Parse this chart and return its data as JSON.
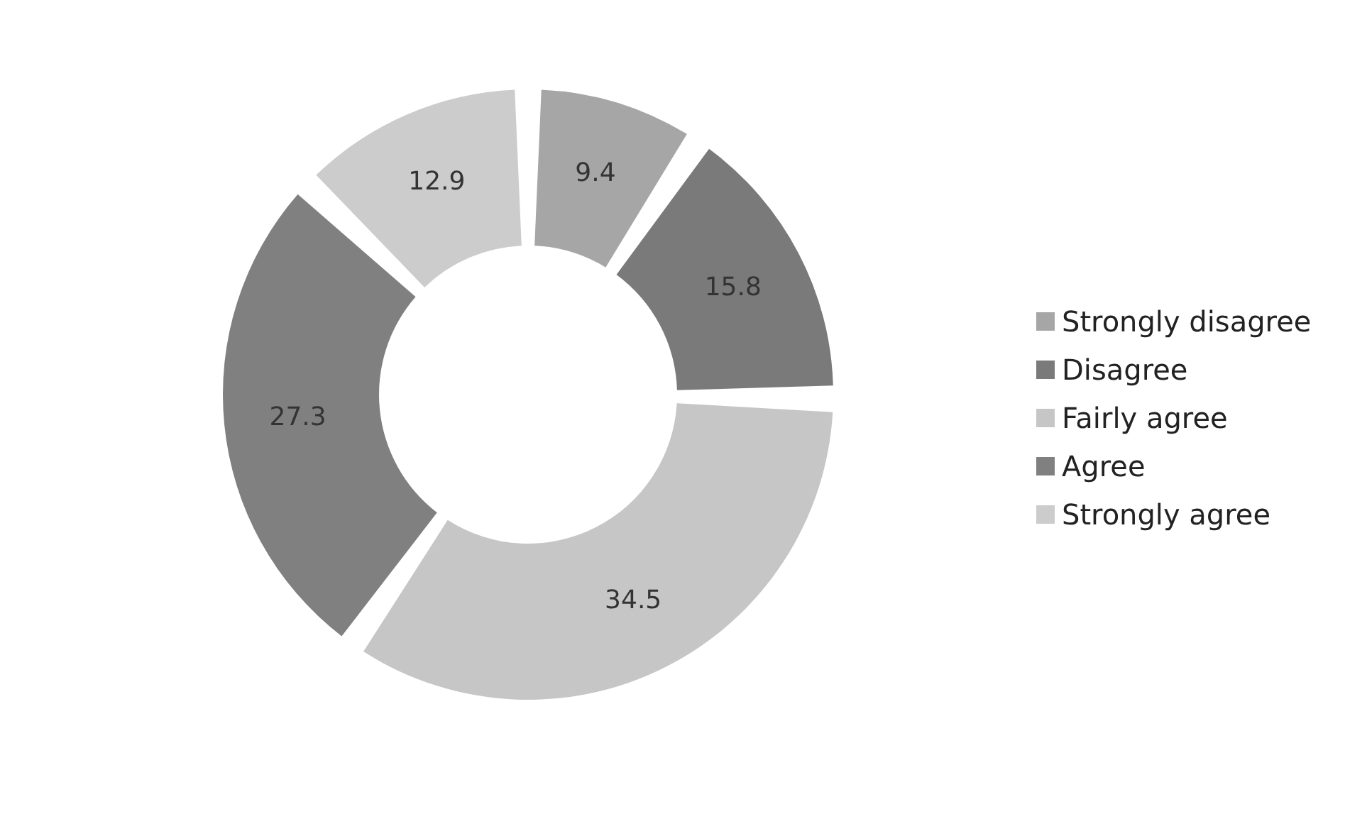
{
  "chart_data": {
    "type": "donut",
    "categories": [
      "Strongly disagree",
      "Disagree",
      "Fairly agree",
      "Agree",
      "Strongly agree"
    ],
    "values": [
      9.4,
      15.8,
      34.5,
      27.3,
      12.9
    ],
    "colors": [
      "#a6a6a6",
      "#7a7a7a",
      "#c6c6c6",
      "#808080",
      "#cccccc"
    ],
    "data_labels": true,
    "legend": "right"
  }
}
